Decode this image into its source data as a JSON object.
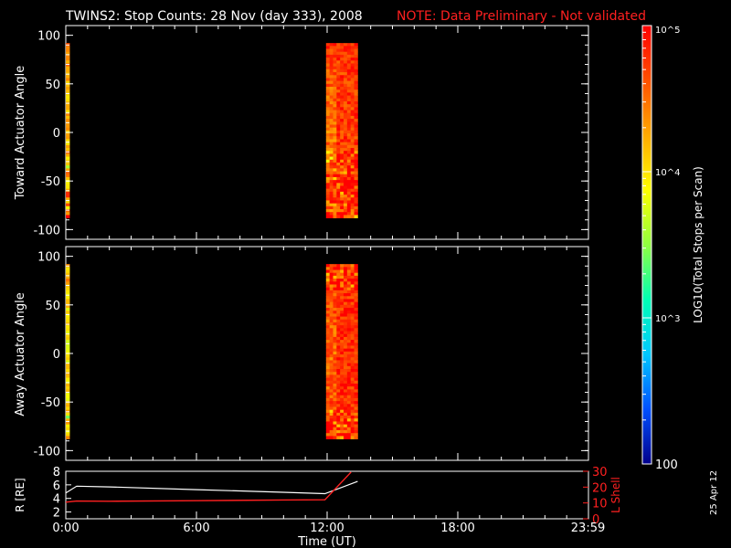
{
  "header": {
    "title": "TWINS2: Stop Counts: 28 Nov (day 333), 2008",
    "note": "NOTE: Data Preliminary - Not validated"
  },
  "colorbar": {
    "label": "LOG10(Total Stops per Scan)",
    "tick_labels": [
      "10^5",
      "10^4",
      "10^3",
      "100"
    ],
    "range": [
      100,
      100000
    ],
    "scale": "log",
    "colormap": [
      "#00008c",
      "#0050ff",
      "#00c8ff",
      "#00ffb4",
      "#90ff40",
      "#ffff00",
      "#ffaa00",
      "#ff5000",
      "#ff0000"
    ]
  },
  "date_stamp": "25 Apr 12",
  "chart_data": [
    {
      "type": "heatmap",
      "name": "toward-panel",
      "ylabel": "Toward Actuator Angle",
      "ylim": [
        -110,
        110
      ],
      "yticks": [
        100,
        50,
        0,
        -50,
        -100
      ],
      "xlim": [
        0,
        24
      ],
      "blocks": [
        {
          "t_start": 0.0,
          "t_end": 0.17,
          "angle_min": -88,
          "angle_max": 92,
          "typical_log_counts": 4.4
        },
        {
          "t_start": 11.95,
          "t_end": 13.4,
          "angle_min": -88,
          "angle_max": 92,
          "typical_log_counts": 4.75
        }
      ]
    },
    {
      "type": "heatmap",
      "name": "away-panel",
      "ylabel": "Away Actuator Angle",
      "ylim": [
        -110,
        110
      ],
      "yticks": [
        100,
        50,
        0,
        -50,
        -100
      ],
      "xlim": [
        0,
        24
      ],
      "blocks": [
        {
          "t_start": 0.0,
          "t_end": 0.17,
          "angle_min": -88,
          "angle_max": 92,
          "typical_log_counts": 4.2
        },
        {
          "t_start": 11.95,
          "t_end": 13.4,
          "angle_min": -88,
          "angle_max": 92,
          "typical_log_counts": 4.8
        }
      ]
    },
    {
      "type": "line",
      "name": "ephemeris-panel",
      "ylabel_left": "R [RE]",
      "ylabel_right": "L Shell",
      "ylim_left": [
        1,
        8
      ],
      "yticks_left": [
        8,
        6,
        4,
        2
      ],
      "ylim_right": [
        0,
        30
      ],
      "yticks_right": [
        30,
        20,
        10,
        0
      ],
      "xlabel": "Time (UT)",
      "xlim": [
        0,
        24
      ],
      "xtick_labels": [
        "0:00",
        "6:00",
        "12:00",
        "18:00",
        "23:59"
      ],
      "series": [
        {
          "axis": "left",
          "color": "#ffffff",
          "x": [
            0,
            0.5,
            2,
            6,
            10,
            11.9,
            13.4
          ],
          "y": [
            4.8,
            5.8,
            5.7,
            5.3,
            4.9,
            4.7,
            6.5
          ]
        },
        {
          "axis": "right",
          "color": "#ff2020",
          "x": [
            0,
            0.5,
            2,
            6,
            10,
            11.9,
            13.1
          ],
          "y": [
            10.5,
            11.2,
            11.1,
            11.4,
            11.9,
            12.0,
            29.5
          ]
        }
      ]
    }
  ]
}
